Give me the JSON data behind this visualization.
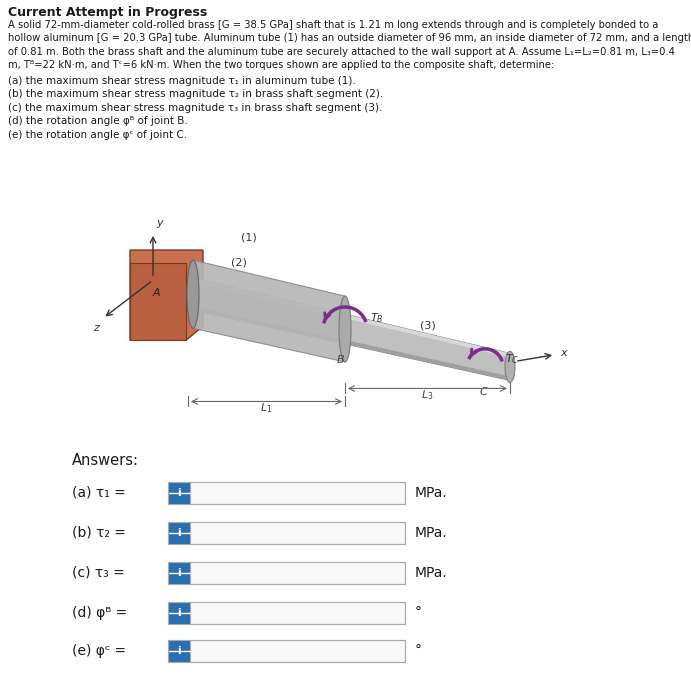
{
  "title": "Current Attempt in Progress",
  "desc_line1": "A solid 72-mm-diameter cold-rolled brass [G = 38.5 GPa] shaft that is 1.21 m long extends through and is completely bonded to a",
  "desc_line2": "hollow aluminum [G = 20.3 GPa] tube. Aluminum tube (1) has an outside diameter of 96 mm, an inside diameter of 72 mm, and a length",
  "desc_line3": "of 0.81 m. Both the brass shaft and the aluminum tube are securely attached to the wall support at A. Assume L₁=L₂=0.81 m, L₃=0.4",
  "desc_line4": "m, Tᴮ=22 kN·m, and Tᶜ=6 kN·m. When the two torques shown are applied to the composite shaft, determine:",
  "q1": "(a) the maximum shear stress magnitude τ₁ in aluminum tube (1).",
  "q2": "(b) the maximum shear stress magnitude τ₂ in brass shaft segment (2).",
  "q3": "(c) the maximum shear stress magnitude τ₃ in brass shaft segment (3).",
  "q4": "(d) the rotation angle φᴮ of joint B.",
  "q5": "(e) the rotation angle φᶜ of joint C.",
  "answers_title": "Answers:",
  "answer_labels": [
    "(a) τ₁ =",
    "(b) τ₂ =",
    "(c) τ₃ =",
    "(d) φᴮ =",
    "(e) φᶜ ="
  ],
  "answer_units": [
    "MPa.",
    "MPa.",
    "MPa.",
    "°",
    "°"
  ],
  "white_bg": "#ffffff",
  "gray_bg": "#d8d8d8",
  "answer_bg": "#e0e0e0",
  "blue_btn": "#2a6faf",
  "input_bg": "#f8f8f8",
  "input_border": "#aaaaaa",
  "text_color": "#1a1a1a",
  "wall_color": "#c87050",
  "shaft_color": "#b8b8b8",
  "shaft_dark": "#888888",
  "purple": "#7b2d8b"
}
